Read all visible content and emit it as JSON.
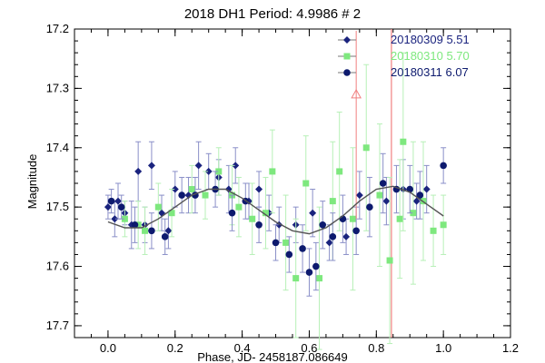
{
  "chart_data": {
    "type": "scatter",
    "title": "2018 DH1 Period:  4.9986 # 2",
    "xlabel": "Phase, JD- 2458187.086649",
    "ylabel": "Magnitude",
    "xlim": [
      -0.1,
      1.2
    ],
    "ylim": [
      17.72,
      17.2
    ],
    "y_inverted": true,
    "x_ticks": [
      "0.0",
      "0.2",
      "0.4",
      "0.6",
      "0.8",
      "1.0",
      "1.2"
    ],
    "x_tick_values": [
      0.0,
      0.2,
      0.4,
      0.6,
      0.8,
      1.0,
      1.2
    ],
    "y_ticks": [
      "17.2",
      "17.3",
      "17.4",
      "17.5",
      "17.6",
      "17.7"
    ],
    "y_tick_values": [
      17.2,
      17.3,
      17.4,
      17.5,
      17.6,
      17.7
    ],
    "grid": false,
    "legend_position": "top-right",
    "series": [
      {
        "name": "20180309  5.51",
        "color": "#1a237e",
        "marker": "diamond",
        "points": [
          {
            "x": 0.0,
            "y": 17.5,
            "err": 0.02
          },
          {
            "x": 0.02,
            "y": 17.52,
            "err": 0.03
          },
          {
            "x": 0.03,
            "y": 17.49,
            "err": 0.03
          },
          {
            "x": 0.05,
            "y": 17.51,
            "err": 0.02
          },
          {
            "x": 0.07,
            "y": 17.53,
            "err": 0.04
          },
          {
            "x": 0.09,
            "y": 17.44,
            "err": 0.05
          },
          {
            "x": 0.11,
            "y": 17.53,
            "err": 0.03
          },
          {
            "x": 0.13,
            "y": 17.43,
            "err": 0.04
          },
          {
            "x": 0.16,
            "y": 17.51,
            "err": 0.03
          },
          {
            "x": 0.18,
            "y": 17.54,
            "err": 0.03
          },
          {
            "x": 0.2,
            "y": 17.47,
            "err": 0.03
          },
          {
            "x": 0.24,
            "y": 17.48,
            "err": 0.03
          },
          {
            "x": 0.27,
            "y": 17.43,
            "err": 0.04
          },
          {
            "x": 0.3,
            "y": 17.44,
            "err": 0.03
          },
          {
            "x": 0.33,
            "y": 17.45,
            "err": 0.03
          },
          {
            "x": 0.36,
            "y": 17.47,
            "err": 0.04
          },
          {
            "x": 0.38,
            "y": 17.43,
            "err": 0.03
          },
          {
            "x": 0.42,
            "y": 17.49,
            "err": 0.03
          },
          {
            "x": 0.45,
            "y": 17.47,
            "err": 0.03
          },
          {
            "x": 0.48,
            "y": 17.51,
            "err": 0.03
          },
          {
            "x": 0.51,
            "y": 17.53,
            "err": 0.03
          },
          {
            "x": 0.56,
            "y": 17.53,
            "err": 0.03
          },
          {
            "x": 0.61,
            "y": 17.51,
            "err": 0.04
          },
          {
            "x": 0.66,
            "y": 17.56,
            "err": 0.03
          },
          {
            "x": 0.71,
            "y": 17.55,
            "err": 0.03
          },
          {
            "x": 0.75,
            "y": 17.48,
            "err": 0.04
          },
          {
            "x": 0.83,
            "y": 17.49,
            "err": 0.04
          },
          {
            "x": 0.88,
            "y": 17.47,
            "err": 0.05
          },
          {
            "x": 0.92,
            "y": 17.49,
            "err": 0.03
          },
          {
            "x": 0.95,
            "y": 17.47,
            "err": 0.04
          }
        ]
      },
      {
        "name": "20180310  5.70",
        "color": "#7ee87e",
        "marker": "square",
        "points": [
          {
            "x": 0.05,
            "y": 17.52,
            "err": 0.03
          },
          {
            "x": 0.09,
            "y": 17.53,
            "err": 0.04
          },
          {
            "x": 0.11,
            "y": 17.54,
            "err": 0.04
          },
          {
            "x": 0.15,
            "y": 17.5,
            "err": 0.04
          },
          {
            "x": 0.19,
            "y": 17.51,
            "err": 0.04
          },
          {
            "x": 0.25,
            "y": 17.47,
            "err": 0.04
          },
          {
            "x": 0.29,
            "y": 17.48,
            "err": 0.04
          },
          {
            "x": 0.33,
            "y": 17.44,
            "err": 0.04
          },
          {
            "x": 0.37,
            "y": 17.48,
            "err": 0.05
          },
          {
            "x": 0.39,
            "y": 17.5,
            "err": 0.05
          },
          {
            "x": 0.43,
            "y": 17.52,
            "err": 0.06
          },
          {
            "x": 0.47,
            "y": 17.51,
            "err": 0.06
          },
          {
            "x": 0.49,
            "y": 17.44,
            "err": 0.07
          },
          {
            "x": 0.53,
            "y": 17.56,
            "err": 0.08
          },
          {
            "x": 0.56,
            "y": 17.62,
            "err": 0.1
          },
          {
            "x": 0.59,
            "y": 17.46,
            "err": 0.08
          },
          {
            "x": 0.63,
            "y": 17.62,
            "err": 0.12
          },
          {
            "x": 0.67,
            "y": 17.49,
            "err": 0.1
          },
          {
            "x": 0.69,
            "y": 17.44,
            "err": 0.1
          },
          {
            "x": 0.73,
            "y": 17.52,
            "err": 0.12
          },
          {
            "x": 0.77,
            "y": 17.4,
            "err": 0.14
          },
          {
            "x": 0.81,
            "y": 17.48,
            "err": 0.12
          },
          {
            "x": 0.84,
            "y": 17.59,
            "err": 0.14
          },
          {
            "x": 0.87,
            "y": 17.52,
            "err": 0.1
          },
          {
            "x": 0.88,
            "y": 17.39,
            "err": 0.15
          },
          {
            "x": 0.91,
            "y": 17.51,
            "err": 0.12
          },
          {
            "x": 0.94,
            "y": 17.49,
            "err": 0.1
          },
          {
            "x": 0.97,
            "y": 17.54,
            "err": 0.06
          },
          {
            "x": 1.0,
            "y": 17.53,
            "err": 0.05
          }
        ]
      },
      {
        "name": "20180311  6.07",
        "color": "#0d1a6e",
        "marker": "circle",
        "points": [
          {
            "x": 0.01,
            "y": 17.49,
            "err": 0.02
          },
          {
            "x": 0.04,
            "y": 17.5,
            "err": 0.02
          },
          {
            "x": 0.08,
            "y": 17.53,
            "err": 0.03
          },
          {
            "x": 0.13,
            "y": 17.54,
            "err": 0.03
          },
          {
            "x": 0.17,
            "y": 17.55,
            "err": 0.03
          },
          {
            "x": 0.22,
            "y": 17.48,
            "err": 0.03
          },
          {
            "x": 0.26,
            "y": 17.48,
            "err": 0.03
          },
          {
            "x": 0.32,
            "y": 17.47,
            "err": 0.03
          },
          {
            "x": 0.37,
            "y": 17.51,
            "err": 0.03
          },
          {
            "x": 0.41,
            "y": 17.49,
            "err": 0.03
          },
          {
            "x": 0.45,
            "y": 17.53,
            "err": 0.03
          },
          {
            "x": 0.5,
            "y": 17.56,
            "err": 0.03
          },
          {
            "x": 0.54,
            "y": 17.58,
            "err": 0.03
          },
          {
            "x": 0.58,
            "y": 17.57,
            "err": 0.04
          },
          {
            "x": 0.6,
            "y": 17.61,
            "err": 0.04
          },
          {
            "x": 0.62,
            "y": 17.6,
            "err": 0.04
          },
          {
            "x": 0.64,
            "y": 17.53,
            "err": 0.04
          },
          {
            "x": 0.67,
            "y": 17.55,
            "err": 0.04
          },
          {
            "x": 0.7,
            "y": 17.52,
            "err": 0.04
          },
          {
            "x": 0.74,
            "y": 17.54,
            "err": 0.04
          },
          {
            "x": 0.78,
            "y": 17.5,
            "err": 0.05
          },
          {
            "x": 0.82,
            "y": 17.46,
            "err": 0.05
          },
          {
            "x": 0.86,
            "y": 17.47,
            "err": 0.04
          },
          {
            "x": 0.9,
            "y": 17.47,
            "err": 0.04
          },
          {
            "x": 0.93,
            "y": 17.48,
            "err": 0.04
          },
          {
            "x": 1.0,
            "y": 17.43,
            "err": 0.03
          }
        ]
      }
    ],
    "fit_curve": {
      "color": "#555555",
      "points": [
        {
          "x": 0.0,
          "y": 17.525
        },
        {
          "x": 0.05,
          "y": 17.535
        },
        {
          "x": 0.1,
          "y": 17.535
        },
        {
          "x": 0.15,
          "y": 17.52
        },
        {
          "x": 0.2,
          "y": 17.5
        },
        {
          "x": 0.25,
          "y": 17.48
        },
        {
          "x": 0.3,
          "y": 17.47
        },
        {
          "x": 0.35,
          "y": 17.47
        },
        {
          "x": 0.4,
          "y": 17.485
        },
        {
          "x": 0.45,
          "y": 17.505
        },
        {
          "x": 0.5,
          "y": 17.525
        },
        {
          "x": 0.55,
          "y": 17.54
        },
        {
          "x": 0.6,
          "y": 17.545
        },
        {
          "x": 0.65,
          "y": 17.535
        },
        {
          "x": 0.7,
          "y": 17.515
        },
        {
          "x": 0.75,
          "y": 17.49
        },
        {
          "x": 0.8,
          "y": 17.47
        },
        {
          "x": 0.85,
          "y": 17.465
        },
        {
          "x": 0.9,
          "y": 17.475
        },
        {
          "x": 0.95,
          "y": 17.495
        },
        {
          "x": 1.0,
          "y": 17.515
        }
      ]
    },
    "outlier": {
      "color": "#f08080",
      "x": 0.74,
      "y": 17.31
    },
    "vertical_line": {
      "color": "#f08080",
      "x": 0.845
    }
  }
}
